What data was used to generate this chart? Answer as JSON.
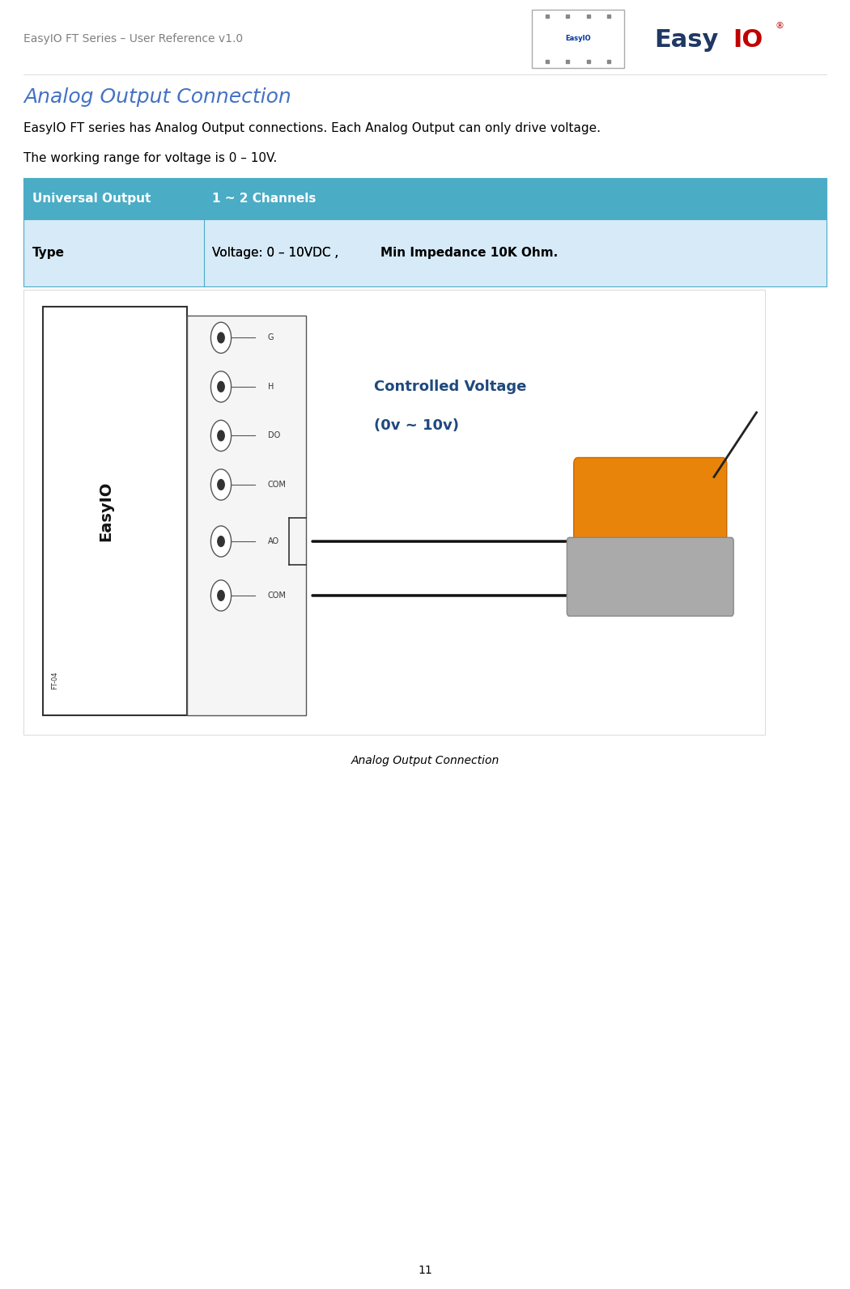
{
  "page_width": 10.5,
  "page_height": 15.93,
  "dpi": 100,
  "bg_color": "#ffffff",
  "header_text": "EasyIO FT Series – User Reference v1.0",
  "header_color": "#808080",
  "header_fontsize": 10,
  "title_text": "Analog Output Connection",
  "title_color": "#4472C4",
  "title_fontsize": 18,
  "body1": "EasyIO FT series has Analog Output connections. Each Analog Output can only drive voltage.",
  "body2": "The working range for voltage is 0 – 10V.",
  "body_fontsize": 11,
  "body_color": "#000000",
  "table_header_bg": "#4BACC6",
  "table_header_text_color": "#ffffff",
  "table_row_bg": "#D6EAF8",
  "table_border_color": "#4BACC6",
  "table_col1_header": "Universal Output",
  "table_col2_header": "1 ~ 2 Channels",
  "table_col1_row1": "Type",
  "table_col2_row1_normal": "Voltage: 0 – 10VDC , ",
  "table_col2_row1_bold": "Min Impedance 10K Ohm.",
  "table_fontsize": 11,
  "caption_text": "Analog Output Connection",
  "caption_fontsize": 10,
  "caption_color": "#000000",
  "page_number": "11",
  "page_number_fontsize": 10,
  "controlled_voltage_line1": "Controlled Voltage",
  "controlled_voltage_line2": "(0v ~ 10v)",
  "cv_color": "#1F497D",
  "cv_fontsize": 13
}
